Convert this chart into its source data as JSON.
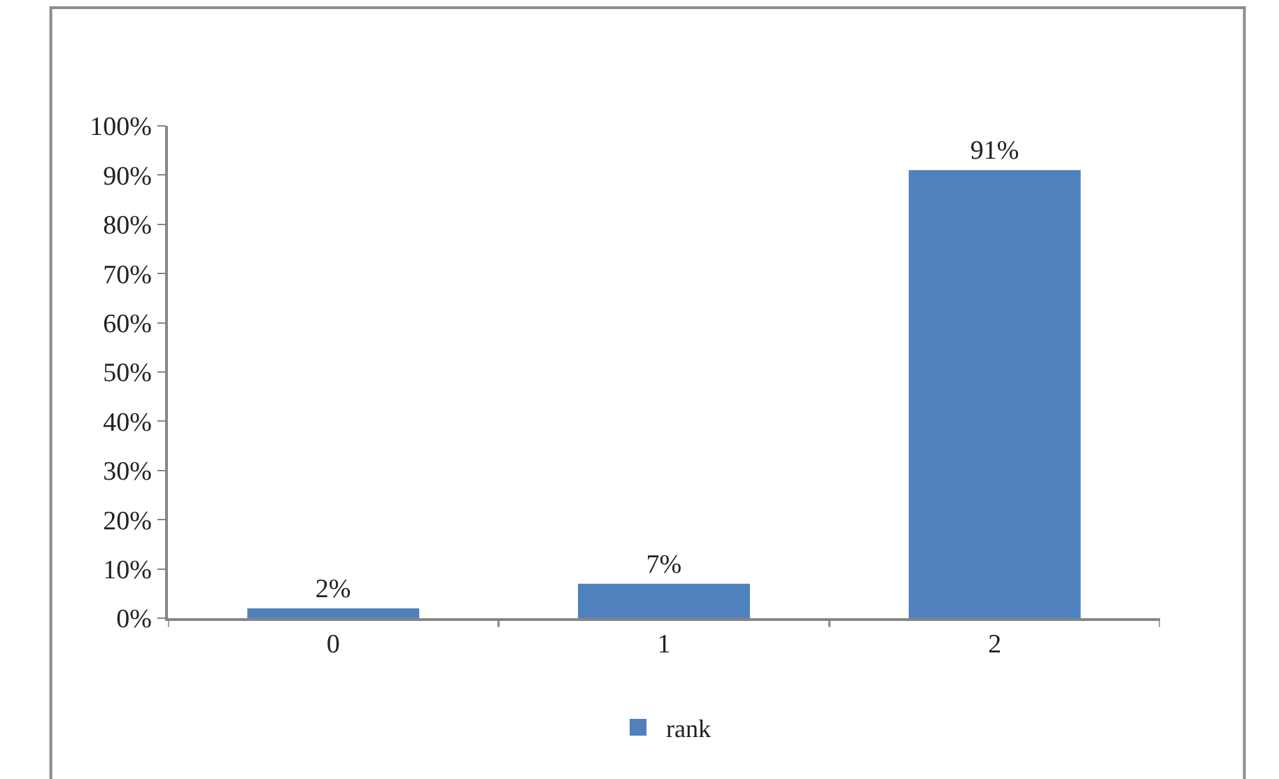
{
  "chart_data": {
    "type": "bar",
    "categories": [
      "0",
      "1",
      "2"
    ],
    "series": [
      {
        "name": "rank",
        "color": "#4f81bd",
        "values": [
          2,
          7,
          91
        ],
        "value_labels": [
          "2%",
          "7%",
          "91%"
        ]
      }
    ],
    "ylim": [
      0,
      100
    ],
    "yticks": [
      {
        "value": 0,
        "label": "0%"
      },
      {
        "value": 10,
        "label": "10%"
      },
      {
        "value": 20,
        "label": "20%"
      },
      {
        "value": 30,
        "label": "30%"
      },
      {
        "value": 40,
        "label": "40%"
      },
      {
        "value": 50,
        "label": "50%"
      },
      {
        "value": 60,
        "label": "60%"
      },
      {
        "value": 70,
        "label": "70%"
      },
      {
        "value": 80,
        "label": "80%"
      },
      {
        "value": 90,
        "label": "90%"
      },
      {
        "value": 100,
        "label": "100%"
      }
    ],
    "legend": "bottom"
  }
}
